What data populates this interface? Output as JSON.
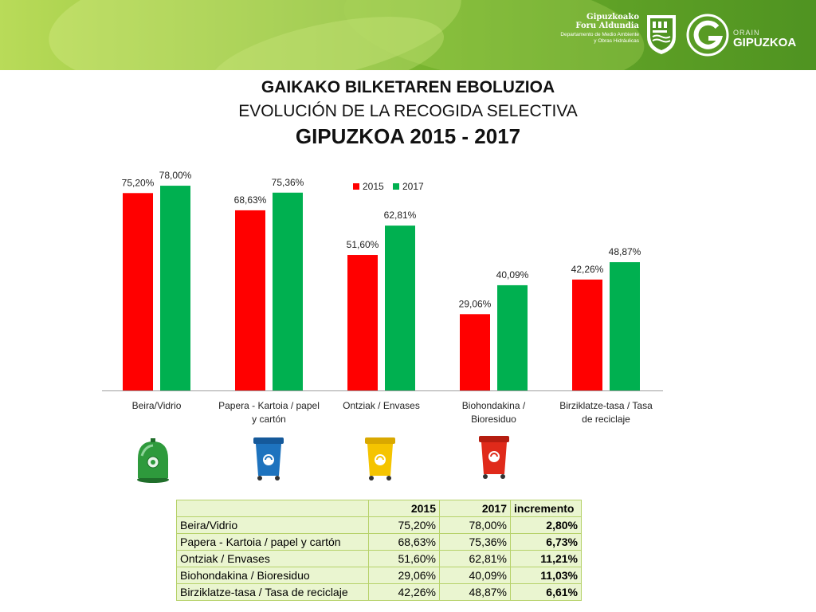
{
  "header": {
    "org_line1": "Gipuzkoako",
    "org_line2": "Foru Aldundia",
    "org_line3": "Departamento de Medio Ambiente",
    "org_line4": "y Obras Hidráulicas",
    "brand_small": "ORAIN",
    "brand_big": "GIPUZKOA",
    "banner_color": "#74b22d"
  },
  "titles": {
    "line1": "GAIKAKO BILKETAREN EBOLUZIOA",
    "line2": "EVOLUCIÓN DE LA RECOGIDA SELECTIVA",
    "line3": "GIPUZKOA 2015 - 2017"
  },
  "chart_data": {
    "type": "bar",
    "categories": [
      [
        "Beira/Vidrio"
      ],
      [
        "Papera - Kartoia / papel",
        "y cartón"
      ],
      [
        "Ontziak / Envases"
      ],
      [
        "Biohondakina /",
        "Bioresiduo"
      ],
      [
        "Birziklatze-tasa / Tasa",
        "de reciclaje"
      ]
    ],
    "series": [
      {
        "name": "2015",
        "color": "#ff0000",
        "values": [
          75.2,
          68.63,
          51.6,
          29.06,
          42.26
        ],
        "labels": [
          "75,20%",
          "68,63%",
          "51,60%",
          "29,06%",
          "42,26%"
        ]
      },
      {
        "name": "2017",
        "color": "#00b050",
        "values": [
          78.0,
          75.36,
          62.81,
          40.09,
          48.87
        ],
        "labels": [
          "78,00%",
          "75,36%",
          "62,81%",
          "40,09%",
          "48,87%"
        ]
      }
    ],
    "ylim": [
      0,
      85
    ],
    "legend": "top-center",
    "grid": false
  },
  "bins": [
    {
      "icon": "green-glass-igloo-icon",
      "color": "#2e9a3c"
    },
    {
      "icon": "blue-paper-bin-icon",
      "color": "#1e73be"
    },
    {
      "icon": "yellow-packaging-bin-icon",
      "color": "#f5c400"
    },
    {
      "icon": "red-organic-bin-icon",
      "color": "#e02a1a"
    }
  ],
  "table": {
    "header": [
      "",
      "2015",
      "2017",
      "incremento"
    ],
    "rows": [
      [
        "Beira/Vidrio",
        "75,20%",
        "78,00%",
        "2,80%"
      ],
      [
        "Papera - Kartoia / papel y cartón",
        "68,63%",
        "75,36%",
        "6,73%"
      ],
      [
        "Ontziak / Envases",
        "51,60%",
        "62,81%",
        "11,21%"
      ],
      [
        "Biohondakina / Bioresiduo",
        "29,06%",
        "40,09%",
        "11,03%"
      ],
      [
        "Birziklatze-tasa / Tasa de reciclaje",
        "42,26%",
        "48,87%",
        "6,61%"
      ]
    ]
  }
}
